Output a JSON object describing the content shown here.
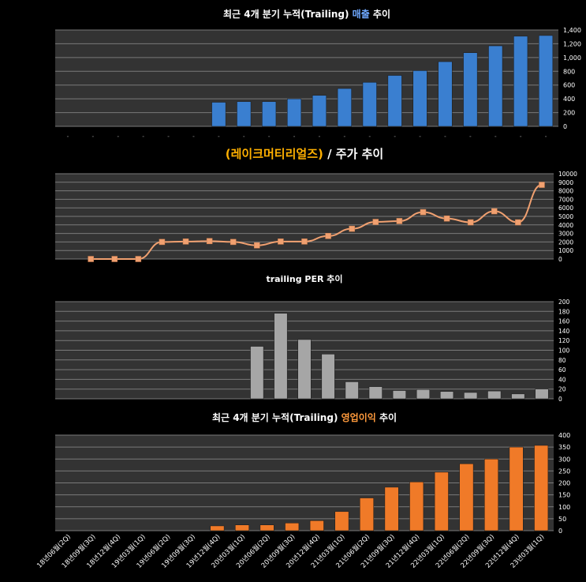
{
  "chart_data": [
    {
      "type": "bar",
      "title_prefix": "최근 4개 분기 누적(Trailing) ",
      "title_highlight": "매출",
      "title_suffix": " 추이",
      "highlight_color": "#6fa8ff",
      "bar_color": "#3a7fd0",
      "ylim": [
        0,
        1400
      ],
      "yticks": [
        "0",
        "200",
        "400",
        "600",
        "800",
        "1,000",
        "1,200",
        "1,400"
      ],
      "categories": [
        "18년06월(2Q)",
        "18년09월(3Q)",
        "18년12월(4Q)",
        "19년03월(1Q)",
        "19년06월(2Q)",
        "19년09월(3Q)",
        "19년12월(4Q)",
        "20년03월(1Q)",
        "20년06월(2Q)",
        "20년09월(3Q)",
        "20년12월(4Q)",
        "21년03월(1Q)",
        "21년06월(2Q)",
        "21년09월(3Q)",
        "21년12월(4Q)",
        "22년03월(1Q)",
        "22년06월(2Q)",
        "22년09월(3Q)",
        "22년12월(4Q)",
        "23년03월(1Q)"
      ],
      "values": [
        null,
        null,
        null,
        null,
        null,
        null,
        350,
        360,
        360,
        400,
        450,
        550,
        640,
        740,
        810,
        940,
        1070,
        1170,
        1310,
        1320
      ]
    },
    {
      "type": "line",
      "title_highlight": "(레이크머티리얼즈)",
      "title_suffix": " / 주가 추이",
      "highlight_color": "#ffb000",
      "line_color": "#f0a070",
      "ylim": [
        0,
        10000
      ],
      "yticks": [
        "0",
        "1000",
        "2000",
        "3000",
        "4000",
        "5000",
        "6000",
        "7000",
        "8000",
        "9000",
        "10000"
      ],
      "values": [
        null,
        0,
        0,
        0,
        2000,
        2050,
        2100,
        2000,
        1600,
        2050,
        2050,
        2700,
        3550,
        4350,
        4450,
        5500,
        4750,
        4300,
        5600,
        4300,
        8700
      ]
    },
    {
      "type": "bar",
      "title_prefix": "trailing ",
      "title_bold": "PER",
      "title_suffix": " 추이",
      "bar_color": "#a6a6a6",
      "ylim": [
        0,
        200
      ],
      "yticks": [
        "0",
        "20",
        "40",
        "60",
        "80",
        "100",
        "120",
        "140",
        "160",
        "180",
        "200"
      ],
      "values": [
        null,
        null,
        null,
        null,
        null,
        null,
        null,
        null,
        108,
        176,
        122,
        92,
        35,
        25,
        17,
        19,
        15,
        13,
        16,
        10,
        20
      ]
    },
    {
      "type": "bar",
      "title_prefix": "최근 4개 분기 누적(Trailing) ",
      "title_highlight": "영업이익",
      "title_suffix": " 추이",
      "highlight_color": "#ff9a3c",
      "bar_color": "#f07a28",
      "ylim": [
        0,
        400
      ],
      "yticks": [
        "0",
        "50",
        "100",
        "150",
        "200",
        "250",
        "300",
        "350",
        "400"
      ],
      "values": [
        null,
        null,
        null,
        null,
        null,
        null,
        20,
        24,
        24,
        32,
        42,
        80,
        137,
        182,
        204,
        245,
        280,
        300,
        350,
        357
      ]
    }
  ]
}
